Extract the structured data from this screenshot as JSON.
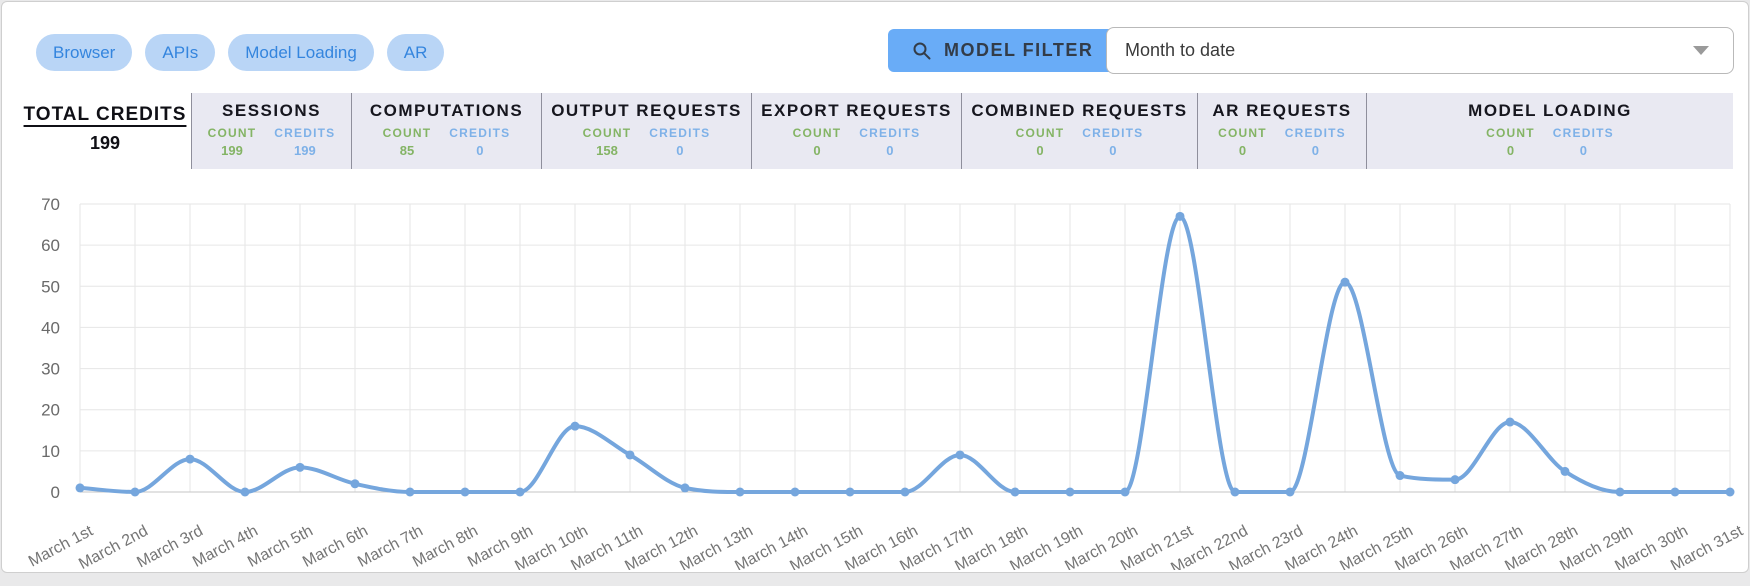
{
  "filters": {
    "pills": [
      {
        "label": "Browser"
      },
      {
        "label": "APIs"
      },
      {
        "label": "Model Loading"
      },
      {
        "label": "AR"
      }
    ]
  },
  "toolbar": {
    "model_filter_label": "MODEL FILTER",
    "search_icon": "magnifier",
    "date_range_value": "Month to date",
    "caret_icon": "chevron-down"
  },
  "summary": {
    "total_label": "TOTAL CREDITS",
    "total_value": "199"
  },
  "stats": {
    "count_label": "COUNT",
    "credits_label": "CREDITS",
    "items": [
      {
        "label": "SESSIONS",
        "count": "199",
        "credits": "199"
      },
      {
        "label": "COMPUTATIONS",
        "count": "85",
        "credits": "0"
      },
      {
        "label": "OUTPUT REQUESTS",
        "count": "158",
        "credits": "0"
      },
      {
        "label": "EXPORT REQUESTS",
        "count": "0",
        "credits": "0"
      },
      {
        "label": "COMBINED REQUESTS",
        "count": "0",
        "credits": "0"
      },
      {
        "label": "AR REQUESTS",
        "count": "0",
        "credits": "0"
      },
      {
        "label": "MODEL LOADING",
        "count": "0",
        "credits": "0"
      }
    ]
  },
  "colors": {
    "accent_blue": "#69acf7",
    "pill_bg": "#b9d5f6",
    "pill_text": "#3485de",
    "tab_bg": "#e9e9f2",
    "count_green": "#84b465",
    "credits_blue": "#7eb1e8",
    "line_blue": "#75a6dd",
    "grid_gray": "#e6e6e6",
    "axis_gray": "#c6c6c6",
    "tick_text": "#6a6a6a",
    "xlabel_text": "#757575"
  },
  "chart_data": {
    "type": "line",
    "title": "",
    "xlabel": "",
    "ylabel": "",
    "x": [
      "March 1st",
      "March 2nd",
      "March 3rd",
      "March 4th",
      "March 5th",
      "March 6th",
      "March 7th",
      "March 8th",
      "March 9th",
      "March 10th",
      "March 11th",
      "March 12th",
      "March 13th",
      "March 14th",
      "March 15th",
      "March 16th",
      "March 17th",
      "March 18th",
      "March 19th",
      "March 20th",
      "March 21st",
      "March 22nd",
      "March 23rd",
      "March 24th",
      "March 25th",
      "March 26th",
      "March 27th",
      "March 28th",
      "March 29th",
      "March 30th",
      "March 31st"
    ],
    "series": [
      {
        "name": "Total Credits",
        "values": [
          1,
          0,
          8,
          0,
          6,
          2,
          0,
          0,
          0,
          16,
          9,
          1,
          0,
          0,
          0,
          0,
          9,
          0,
          0,
          0,
          67,
          0,
          0,
          51,
          4,
          3,
          17,
          5,
          0,
          0,
          0
        ]
      }
    ],
    "ylim": [
      0,
      70
    ],
    "yticks": [
      0,
      10,
      20,
      30,
      40,
      50,
      60,
      70
    ],
    "grid": true,
    "legend": false,
    "line_color": "#75a6dd",
    "marker": "circle"
  }
}
